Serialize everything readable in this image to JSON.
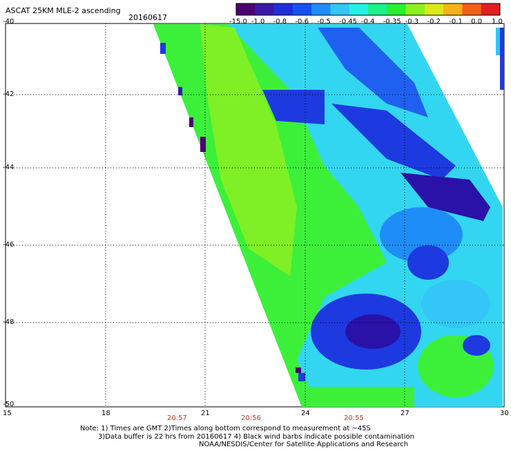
{
  "header": {
    "title": "ASCAT 25KM MLE-2 ascending",
    "date": "20160617"
  },
  "colorbar": {
    "labels": [
      "-15.0",
      "-1.0",
      "-0.8",
      "-0.6",
      "-0.5",
      "-0.45",
      "-0.4",
      "-0.35",
      "-0.3",
      "-0.2",
      "-0.1",
      "0.0",
      "1.0"
    ],
    "colors": [
      "#4b0070",
      "#3a1aa8",
      "#1f2fd8",
      "#1552f0",
      "#1f8df7",
      "#33c6f7",
      "#25f0e8",
      "#1cf089",
      "#28f030",
      "#8bf020",
      "#d9e91a",
      "#f5b21a",
      "#f06018",
      "#e02020"
    ]
  },
  "axes": {
    "lat_labels": [
      "-40",
      "-42",
      "-44",
      "-46",
      "-48",
      "-50"
    ],
    "lon_labels": [
      "15",
      "18",
      "21",
      "24",
      "27",
      "30"
    ],
    "lat_range": [
      -40,
      -50
    ],
    "lon_range": [
      15,
      30
    ]
  },
  "times": [
    "20:57",
    "20:56",
    "20:55"
  ],
  "footer": {
    "note_line1": "Note: 1) Times are GMT 2)Times along bottom correspond to measurement at ~45S",
    "note_line2": "3)Data buffer is 22 hrs from 20160617 4) Black wind barbs indicate possible contamination",
    "credit": "NOAA/NESDIS/Center for Satellite Applications and Research"
  }
}
